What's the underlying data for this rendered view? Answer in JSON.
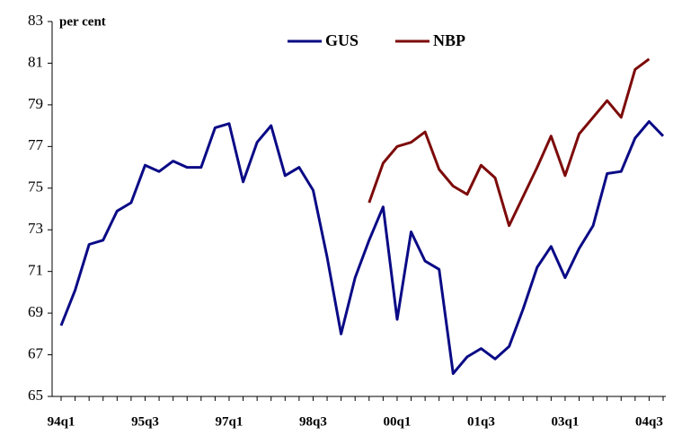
{
  "chart_data": {
    "type": "line",
    "ylabel": "per cent",
    "categories": [
      "94q1",
      null,
      null,
      null,
      null,
      null,
      "95q3",
      null,
      null,
      null,
      null,
      null,
      "97q1",
      null,
      null,
      null,
      null,
      null,
      "98q3",
      null,
      null,
      null,
      null,
      null,
      "00q1",
      null,
      null,
      null,
      null,
      null,
      "01q3",
      null,
      null,
      null,
      null,
      null,
      "03q1",
      null,
      null,
      null,
      null,
      null,
      "04q3",
      null
    ],
    "series": [
      {
        "name": "GUS",
        "color": "#0a0a86",
        "values": [
          68.4,
          70.1,
          72.3,
          72.5,
          73.9,
          74.3,
          76.1,
          75.8,
          76.3,
          76.0,
          76.0,
          77.9,
          78.1,
          75.3,
          77.2,
          78.0,
          75.6,
          76.0,
          74.9,
          71.7,
          68.0,
          70.7,
          72.5,
          74.1,
          68.7,
          72.9,
          71.5,
          71.1,
          66.1,
          66.9,
          67.3,
          66.8,
          67.4,
          69.2,
          71.2,
          72.2,
          70.7,
          72.1,
          73.2,
          75.7,
          75.8,
          77.4,
          78.2,
          77.5
        ]
      },
      {
        "name": "NBP",
        "color": "#7d0a0a",
        "values": [
          null,
          null,
          null,
          null,
          null,
          null,
          null,
          null,
          null,
          null,
          null,
          null,
          null,
          null,
          null,
          null,
          null,
          null,
          null,
          null,
          null,
          null,
          74.3,
          76.2,
          77.0,
          77.2,
          77.7,
          75.9,
          75.1,
          74.7,
          76.1,
          75.5,
          73.2,
          74.6,
          76.0,
          77.5,
          75.6,
          77.6,
          78.4,
          79.2,
          78.4,
          80.7,
          81.2,
          null
        ]
      }
    ],
    "ylim": [
      65,
      83
    ],
    "yticks": [
      65,
      67,
      69,
      71,
      73,
      75,
      77,
      79,
      81,
      83
    ],
    "legend": "top"
  }
}
